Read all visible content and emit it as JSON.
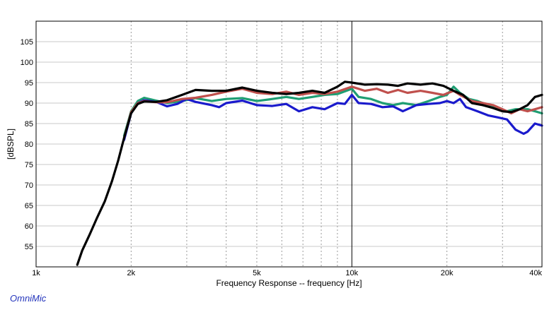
{
  "app": {
    "brand": "OmniMic"
  },
  "chart_data": {
    "type": "line",
    "title": "",
    "xlabel": "Frequency Response -- frequency [Hz]",
    "ylabel": "[dBSPL]",
    "x_scale": "log",
    "xlim": [
      1000,
      40000
    ],
    "ylim": [
      50,
      110
    ],
    "x_ticks": [
      {
        "value": 1000,
        "label": "1k"
      },
      {
        "value": 2000,
        "label": "2k"
      },
      {
        "value": 5000,
        "label": "5k"
      },
      {
        "value": 10000,
        "label": "10k"
      },
      {
        "value": 20000,
        "label": "20k"
      },
      {
        "value": 40000,
        "label": "40k"
      }
    ],
    "y_ticks": [
      55,
      60,
      65,
      70,
      75,
      80,
      85,
      90,
      95,
      100,
      105
    ],
    "grid": true,
    "legend": "none",
    "series": [
      {
        "color": "#1f9e73",
        "points": [
          [
            1900,
            82
          ],
          [
            2000,
            88
          ],
          [
            2100,
            90.5
          ],
          [
            2200,
            91.3
          ],
          [
            2400,
            90.6
          ],
          [
            2600,
            90
          ],
          [
            2900,
            90.5
          ],
          [
            3200,
            91.2
          ],
          [
            3600,
            90.5
          ],
          [
            4000,
            91
          ],
          [
            4500,
            91.2
          ],
          [
            5000,
            90.5
          ],
          [
            5600,
            91
          ],
          [
            6200,
            91.5
          ],
          [
            6800,
            91
          ],
          [
            7500,
            91.5
          ],
          [
            8200,
            92
          ],
          [
            9000,
            92.2
          ],
          [
            10000,
            93.5
          ],
          [
            10500,
            91.5
          ],
          [
            11500,
            91
          ],
          [
            12500,
            90
          ],
          [
            13500,
            89.5
          ],
          [
            14500,
            90
          ],
          [
            16000,
            89.5
          ],
          [
            17500,
            90.5
          ],
          [
            19000,
            91.5
          ],
          [
            20000,
            92
          ],
          [
            21000,
            94
          ],
          [
            22000,
            92.5
          ],
          [
            23500,
            91
          ],
          [
            25000,
            90.5
          ],
          [
            27000,
            89.5
          ],
          [
            29000,
            88.5
          ],
          [
            31000,
            88
          ],
          [
            33000,
            88.5
          ],
          [
            36000,
            88.5
          ],
          [
            38000,
            88
          ],
          [
            40000,
            87.5
          ]
        ]
      },
      {
        "color": "#1a1acc",
        "points": [
          [
            1900,
            81
          ],
          [
            2000,
            87.5
          ],
          [
            2100,
            90
          ],
          [
            2200,
            90.7
          ],
          [
            2400,
            90.3
          ],
          [
            2600,
            89.2
          ],
          [
            2800,
            89.8
          ],
          [
            3000,
            91
          ],
          [
            3200,
            90.3
          ],
          [
            3600,
            89.5
          ],
          [
            3800,
            89
          ],
          [
            4000,
            90
          ],
          [
            4500,
            90.6
          ],
          [
            5000,
            89.5
          ],
          [
            5600,
            89.3
          ],
          [
            6200,
            89.8
          ],
          [
            6800,
            88
          ],
          [
            7500,
            89
          ],
          [
            8200,
            88.5
          ],
          [
            9000,
            90
          ],
          [
            9500,
            89.8
          ],
          [
            10000,
            92
          ],
          [
            10500,
            90
          ],
          [
            11500,
            89.8
          ],
          [
            12500,
            89
          ],
          [
            13500,
            89.2
          ],
          [
            14500,
            88
          ],
          [
            16000,
            89.5
          ],
          [
            17500,
            89.8
          ],
          [
            19000,
            90
          ],
          [
            20000,
            90.5
          ],
          [
            21000,
            90
          ],
          [
            22000,
            91
          ],
          [
            23000,
            89
          ],
          [
            25000,
            88
          ],
          [
            27000,
            87
          ],
          [
            29000,
            86.5
          ],
          [
            31000,
            86
          ],
          [
            33000,
            83.5
          ],
          [
            35000,
            82.5
          ],
          [
            36000,
            83
          ],
          [
            38000,
            85
          ],
          [
            40000,
            84.5
          ]
        ]
      },
      {
        "color": "#c0504d",
        "points": [
          [
            1900,
            81.5
          ],
          [
            2000,
            87.8
          ],
          [
            2100,
            90
          ],
          [
            2200,
            90.5
          ],
          [
            2400,
            90.2
          ],
          [
            2600,
            90.2
          ],
          [
            2900,
            91
          ],
          [
            3200,
            91.3
          ],
          [
            3600,
            92
          ],
          [
            4000,
            92.8
          ],
          [
            4500,
            93.5
          ],
          [
            5000,
            92.5
          ],
          [
            5600,
            92.2
          ],
          [
            6200,
            92.8
          ],
          [
            6800,
            92
          ],
          [
            7500,
            92.5
          ],
          [
            8200,
            92.2
          ],
          [
            9000,
            92.8
          ],
          [
            10000,
            94
          ],
          [
            11000,
            93
          ],
          [
            12000,
            93.5
          ],
          [
            13000,
            92.5
          ],
          [
            14000,
            93.2
          ],
          [
            15000,
            92.5
          ],
          [
            16500,
            93
          ],
          [
            18000,
            92.5
          ],
          [
            19500,
            92
          ],
          [
            21000,
            93
          ],
          [
            22000,
            92
          ],
          [
            24000,
            90.5
          ],
          [
            26000,
            90
          ],
          [
            28000,
            89.5
          ],
          [
            30000,
            88.5
          ],
          [
            32000,
            87.5
          ],
          [
            34000,
            88.5
          ],
          [
            36000,
            88
          ],
          [
            38000,
            88.5
          ],
          [
            40000,
            89
          ]
        ]
      },
      {
        "color": "#000000",
        "points": [
          [
            1350,
            50.5
          ],
          [
            1400,
            54
          ],
          [
            1480,
            58
          ],
          [
            1560,
            62
          ],
          [
            1650,
            66
          ],
          [
            1740,
            71
          ],
          [
            1820,
            76
          ],
          [
            1900,
            81.5
          ],
          [
            2000,
            87.5
          ],
          [
            2100,
            89.8
          ],
          [
            2200,
            90.4
          ],
          [
            2400,
            90.3
          ],
          [
            2600,
            90.7
          ],
          [
            2900,
            92
          ],
          [
            3200,
            93.2
          ],
          [
            3600,
            93
          ],
          [
            4000,
            93
          ],
          [
            4500,
            93.8
          ],
          [
            5000,
            93
          ],
          [
            5600,
            92.5
          ],
          [
            6200,
            92.2
          ],
          [
            6800,
            92.5
          ],
          [
            7500,
            93
          ],
          [
            8200,
            92.5
          ],
          [
            9000,
            94
          ],
          [
            9500,
            95.2
          ],
          [
            10000,
            95
          ],
          [
            11000,
            94.5
          ],
          [
            12000,
            94.6
          ],
          [
            13000,
            94.5
          ],
          [
            14000,
            94.2
          ],
          [
            15000,
            94.8
          ],
          [
            16500,
            94.5
          ],
          [
            18000,
            94.8
          ],
          [
            19500,
            94.2
          ],
          [
            21000,
            93
          ],
          [
            22500,
            92
          ],
          [
            24000,
            90
          ],
          [
            26000,
            89.5
          ],
          [
            28000,
            88.8
          ],
          [
            30000,
            88
          ],
          [
            32000,
            87.8
          ],
          [
            34000,
            88.5
          ],
          [
            36000,
            89.5
          ],
          [
            38000,
            91.5
          ],
          [
            40000,
            92
          ]
        ]
      }
    ]
  }
}
